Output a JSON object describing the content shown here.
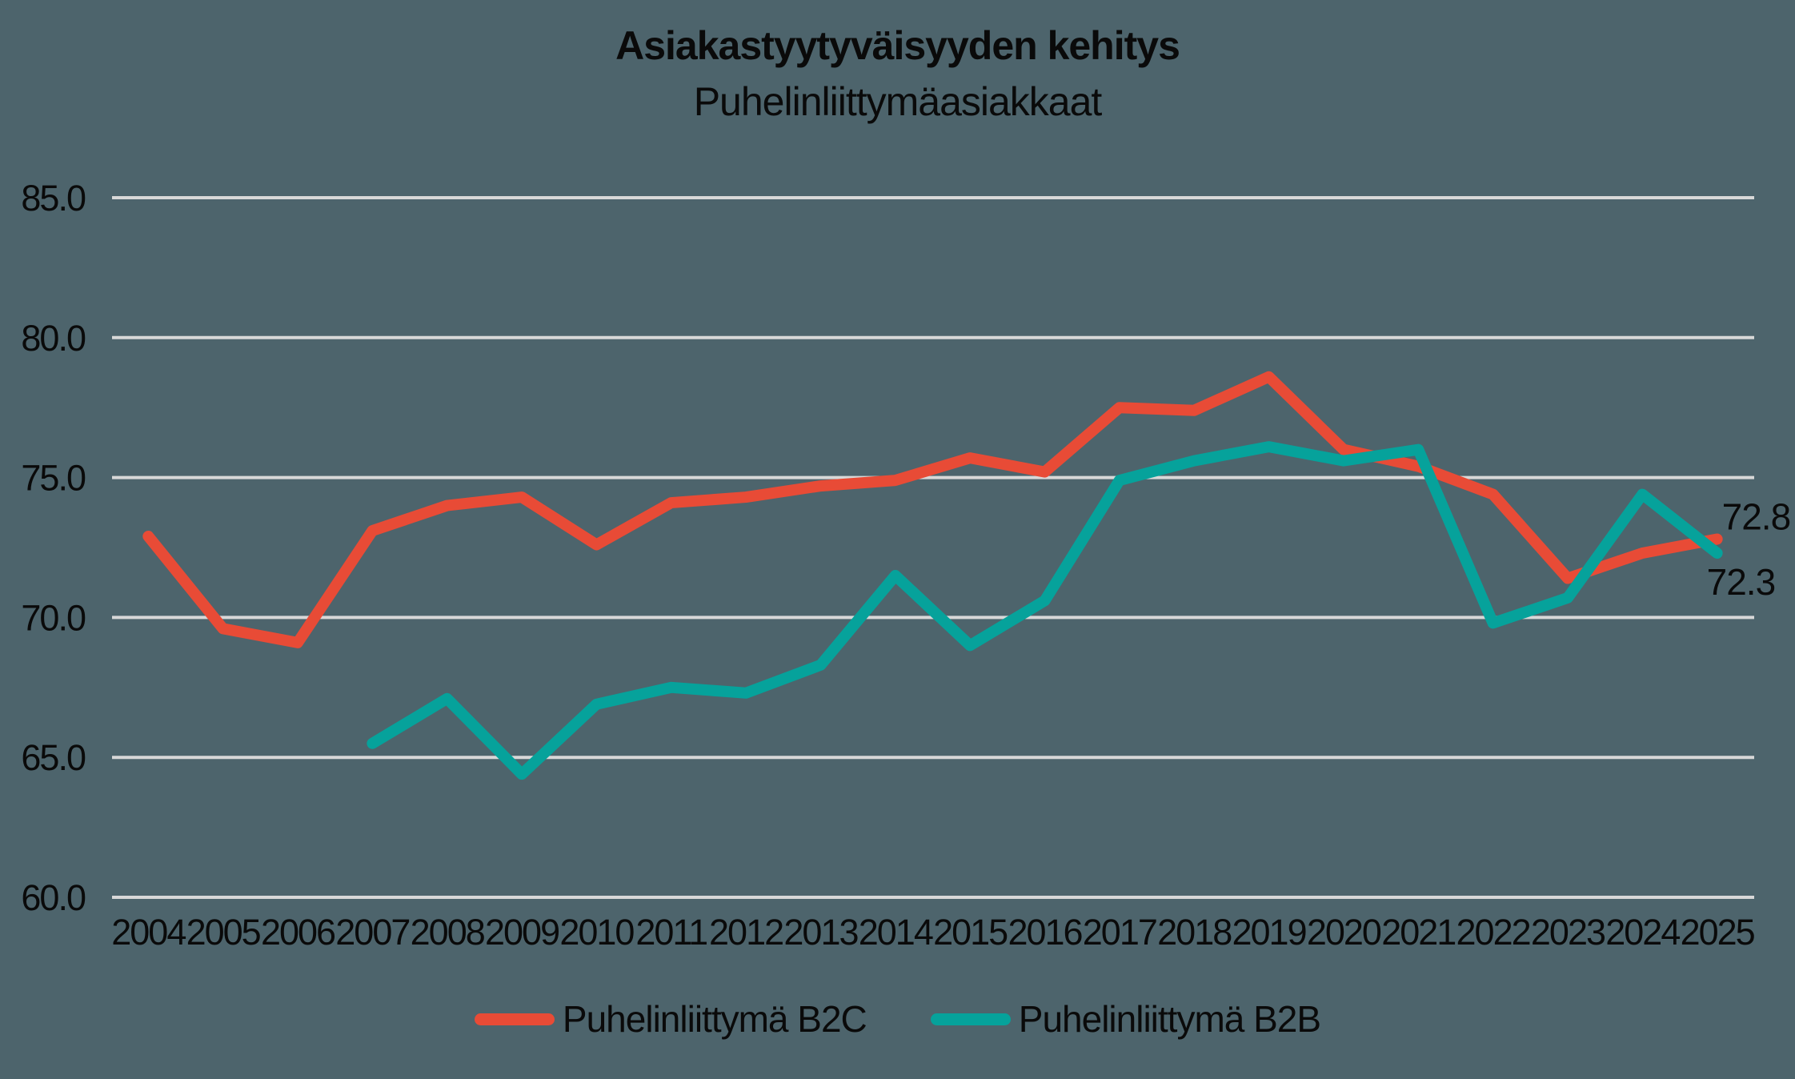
{
  "title": "Asiakastyytyväisyyden kehitys",
  "subtitle": "Puhelinliittymäasiakkaat",
  "colors": {
    "background": "#4D646C",
    "gridline": "#D8D8D8",
    "text": "#0A0A0A",
    "b2c": "#E84B36",
    "b2b": "#06A29B"
  },
  "chart_data": {
    "type": "line",
    "title": "Asiakastyytyväisyyden kehitys",
    "subtitle": "Puhelinliittymäasiakkaat",
    "x": [
      2004,
      2005,
      2006,
      2007,
      2008,
      2009,
      2010,
      2011,
      2012,
      2013,
      2014,
      2015,
      2016,
      2017,
      2018,
      2019,
      2020,
      2021,
      2022,
      2023,
      2024,
      2025
    ],
    "series": [
      {
        "name": "Puhelinliittymä B2C",
        "color_key": "b2c",
        "end_label": "72.8",
        "values": [
          72.9,
          69.6,
          69.1,
          73.1,
          74.0,
          74.3,
          72.6,
          74.1,
          74.3,
          74.7,
          74.9,
          75.7,
          75.2,
          77.5,
          77.4,
          78.6,
          76.0,
          75.4,
          74.4,
          71.4,
          72.3,
          72.8
        ]
      },
      {
        "name": "Puhelinliittymä B2B",
        "color_key": "b2b",
        "end_label": "72.3",
        "values": [
          null,
          null,
          null,
          65.5,
          67.1,
          64.4,
          66.9,
          67.5,
          67.3,
          68.3,
          71.5,
          69.0,
          70.6,
          74.9,
          75.6,
          76.1,
          75.6,
          76.0,
          69.8,
          70.7,
          74.4,
          72.3
        ]
      }
    ],
    "ylim": [
      60,
      85
    ],
    "yticks": [
      60,
      65,
      70,
      75,
      80,
      85
    ],
    "ytick_labels": [
      "60.0",
      "65.0",
      "70.0",
      "75.0",
      "80.0",
      "85.0"
    ],
    "grid": "horizontal",
    "legend_position": "bottom"
  }
}
